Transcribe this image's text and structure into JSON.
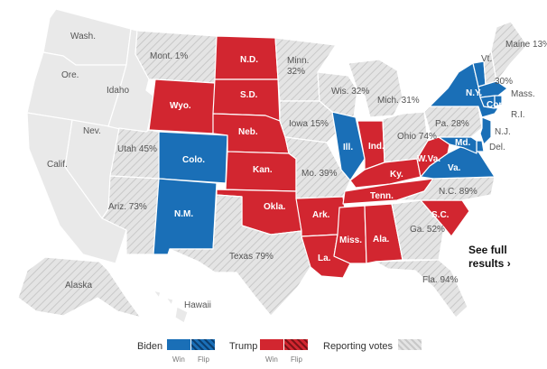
{
  "colors": {
    "biden": "#1a6fb7",
    "trump": "#d22630",
    "reporting": "#dcdcdc",
    "no_data": "#e9e9e9",
    "border": "#ffffff"
  },
  "states": [
    {
      "label": "Wash.",
      "winner": "none"
    },
    {
      "label": "Ore.",
      "winner": "none"
    },
    {
      "label": "Calif.",
      "winner": "none"
    },
    {
      "label": "Nev.",
      "winner": "none"
    },
    {
      "label": "Idaho",
      "winner": "none"
    },
    {
      "label": "Mont. 1%",
      "winner": "reporting"
    },
    {
      "label": "Wyo.",
      "winner": "trump"
    },
    {
      "label": "Utah 45%",
      "winner": "reporting"
    },
    {
      "label": "Colo.",
      "winner": "biden"
    },
    {
      "label": "Ariz. 73%",
      "winner": "reporting"
    },
    {
      "label": "N.M.",
      "winner": "biden"
    },
    {
      "label": "N.D.",
      "winner": "trump"
    },
    {
      "label": "S.D.",
      "winner": "trump"
    },
    {
      "label": "Neb.",
      "winner": "trump"
    },
    {
      "label": "Kan.",
      "winner": "trump"
    },
    {
      "label": "Okla.",
      "winner": "trump"
    },
    {
      "label": "Texas 79%",
      "winner": "reporting"
    },
    {
      "label": "Minn. 32%",
      "winner": "reporting"
    },
    {
      "label": "Iowa 15%",
      "winner": "reporting"
    },
    {
      "label": "Mo. 39%",
      "winner": "reporting"
    },
    {
      "label": "Ark.",
      "winner": "trump"
    },
    {
      "label": "La.",
      "winner": "trump"
    },
    {
      "label": "Wis. 32%",
      "winner": "reporting"
    },
    {
      "label": "Ill.",
      "winner": "biden"
    },
    {
      "label": "Mich. 31%",
      "winner": "reporting"
    },
    {
      "label": "Ind.",
      "winner": "trump"
    },
    {
      "label": "Ohio 74%",
      "winner": "reporting"
    },
    {
      "label": "Ky.",
      "winner": "trump"
    },
    {
      "label": "Tenn.",
      "winner": "trump"
    },
    {
      "label": "Miss.",
      "winner": "trump"
    },
    {
      "label": "Ala.",
      "winner": "trump"
    },
    {
      "label": "Ga. 52%",
      "winner": "reporting"
    },
    {
      "label": "Fla. 94%",
      "winner": "reporting"
    },
    {
      "label": "S.C.",
      "winner": "trump"
    },
    {
      "label": "N.C. 89%",
      "winner": "reporting"
    },
    {
      "label": "Va.",
      "winner": "biden"
    },
    {
      "label": "W.Va.",
      "winner": "trump"
    },
    {
      "label": "Pa. 28%",
      "winner": "reporting"
    },
    {
      "label": "N.Y.",
      "winner": "biden"
    },
    {
      "label": "Vt.",
      "winner": "biden"
    },
    {
      "label": "Maine 13%",
      "winner": "reporting"
    },
    {
      "label": "30%",
      "winner": "reporting"
    },
    {
      "label": "Mass.",
      "winner": "biden"
    },
    {
      "label": "R.I.",
      "winner": "biden"
    },
    {
      "label": "Conn.",
      "winner": "biden"
    },
    {
      "label": "N.J.",
      "winner": "biden"
    },
    {
      "label": "Del.",
      "winner": "biden"
    },
    {
      "label": "Md.",
      "winner": "biden"
    },
    {
      "label": "Alaska",
      "winner": "reporting"
    },
    {
      "label": "Hawaii",
      "winner": "none"
    }
  ],
  "cta": {
    "line1": "See full",
    "line2": "results",
    "arrow": "›"
  },
  "legend": {
    "biden": "Biden",
    "trump": "Trump",
    "reporting": "Reporting votes",
    "win": "Win",
    "flip": "Flip"
  }
}
